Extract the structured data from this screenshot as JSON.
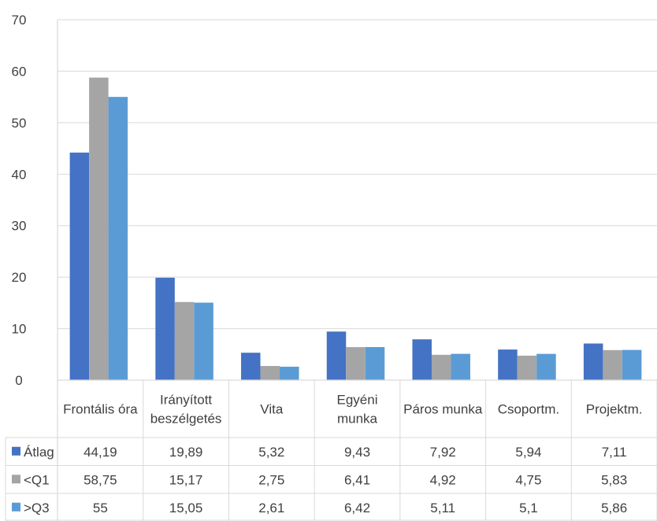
{
  "chart_data": {
    "type": "bar",
    "title": "",
    "xlabel": "",
    "ylabel": "",
    "ylim": [
      0,
      70
    ],
    "yticks": [
      "0",
      "10",
      "20",
      "30",
      "40",
      "50",
      "60",
      "70"
    ],
    "grid": true,
    "legend": "data-table-left",
    "categories": [
      [
        "Frontális óra"
      ],
      [
        "Irányított",
        "beszélgetés"
      ],
      [
        "Vita"
      ],
      [
        "Egyéni",
        "munka"
      ],
      [
        "Páros munka"
      ],
      [
        "Csoportm."
      ],
      [
        "Projektm."
      ]
    ],
    "series": [
      {
        "name": "Átlag",
        "color": "#4472c4",
        "values": [
          44.19,
          19.89,
          5.32,
          9.43,
          7.92,
          5.94,
          7.11
        ],
        "labels": [
          "44,19",
          "19,89",
          "5,32",
          "9,43",
          "7,92",
          "5,94",
          "7,11"
        ]
      },
      {
        "name": "<Q1",
        "color": "#a5a5a5",
        "values": [
          58.75,
          15.17,
          2.75,
          6.41,
          4.92,
          4.75,
          5.83
        ],
        "labels": [
          "58,75",
          "15,17",
          "2,75",
          "6,41",
          "4,92",
          "4,75",
          "5,83"
        ]
      },
      {
        "name": ">Q3",
        "color": "#5b9bd5",
        "values": [
          55,
          15.05,
          2.61,
          6.42,
          5.11,
          5.1,
          5.86
        ],
        "labels": [
          "55",
          "15,05",
          "2,61",
          "6,42",
          "5,11",
          "5,1",
          "5,86"
        ]
      }
    ]
  }
}
